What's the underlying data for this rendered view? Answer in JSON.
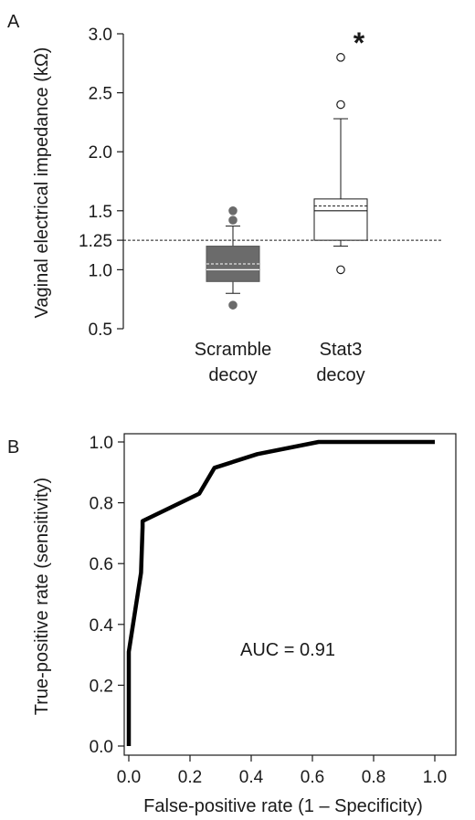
{
  "chart_data": [
    {
      "panel_label": "A",
      "type": "box",
      "ylabel": "Vaginal electrical impedance (kΩ)",
      "ylim": [
        0.5,
        3.0
      ],
      "y_ticks": [
        "0.5",
        "1.0",
        "1.25",
        "1.5",
        "2.0",
        "2.5",
        "3.0"
      ],
      "y_tick_values": [
        0.5,
        1.0,
        1.25,
        1.5,
        2.0,
        2.5,
        3.0
      ],
      "threshold": 1.25,
      "groups": [
        {
          "label_lines": [
            "Scramble",
            "decoy"
          ],
          "fill": "#6b6b6b",
          "whisker_low": 0.8,
          "q1": 0.9,
          "median": 1.0,
          "mean": 1.05,
          "q3": 1.2,
          "whisker_high": 1.37,
          "outliers": [
            0.7,
            1.42,
            1.5
          ],
          "significance": ""
        },
        {
          "label_lines": [
            "Stat3",
            "decoy"
          ],
          "fill": "#ffffff",
          "whisker_low": 1.2,
          "q1": 1.25,
          "median": 1.5,
          "mean": 1.54,
          "q3": 1.6,
          "whisker_high": 2.28,
          "outliers": [
            1.0,
            2.4,
            2.8
          ],
          "significance": "*"
        }
      ]
    },
    {
      "panel_label": "B",
      "type": "line",
      "xlabel": "False-positive rate (1 – Specificity)",
      "ylabel": "True-positive rate (sensitivity)",
      "xlim": [
        0,
        1
      ],
      "ylim": [
        0,
        1
      ],
      "x_ticks": [
        "0.0",
        "0.2",
        "0.4",
        "0.6",
        "0.8",
        "1.0"
      ],
      "y_ticks": [
        "0.0",
        "0.2",
        "0.4",
        "0.6",
        "0.8",
        "1.0"
      ],
      "annotation": "AUC = 0.91",
      "series": [
        {
          "x": [
            0.0,
            0.0,
            0.0,
            0.04,
            0.045,
            0.045,
            0.23,
            0.28,
            0.42,
            0.62,
            1.0
          ],
          "y": [
            0.0,
            0.01,
            0.31,
            0.57,
            0.72,
            0.74,
            0.83,
            0.915,
            0.96,
            1.0,
            1.0
          ]
        }
      ]
    }
  ]
}
